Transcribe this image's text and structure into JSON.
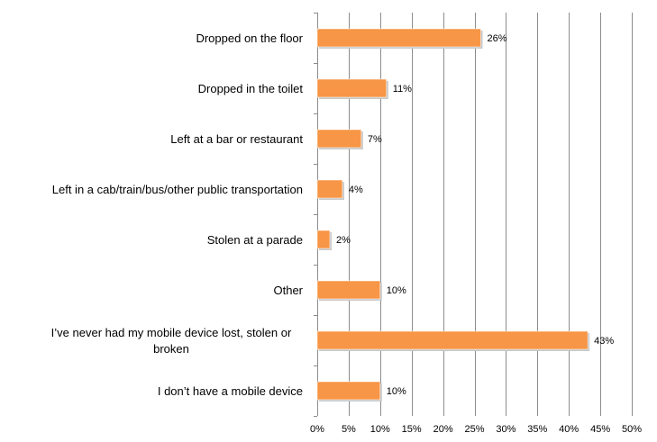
{
  "chart_data": {
    "type": "bar",
    "orientation": "horizontal",
    "title": "",
    "xlabel": "",
    "ylabel": "",
    "categories": [
      "Dropped on the floor",
      "Dropped in the toilet",
      "Left at a bar or restaurant",
      "Left in a cab/train/bus/other public transportation",
      "Stolen at a parade",
      "Other",
      [
        "I’ve never had my mobile device lost, stolen or",
        "broken"
      ],
      "I don’t have a mobile device"
    ],
    "values": [
      26,
      11,
      7,
      4,
      2,
      10,
      43,
      10
    ],
    "data_labels": [
      "26%",
      "11%",
      "7%",
      "4%",
      "2%",
      "10%",
      "43%",
      "10%"
    ],
    "xlim": [
      0,
      50
    ],
    "xticks": [
      0,
      5,
      10,
      15,
      20,
      25,
      30,
      35,
      40,
      45,
      50
    ],
    "xtick_labels": [
      "0%",
      "5%",
      "10%",
      "15%",
      "20%",
      "25%",
      "30%",
      "35%",
      "40%",
      "45%",
      "50%"
    ],
    "grid": true,
    "legend": "none",
    "colors": {
      "bar": "#f79646",
      "grid": "#8c8c8c",
      "bar_shadow": "#c8c8c8"
    }
  }
}
